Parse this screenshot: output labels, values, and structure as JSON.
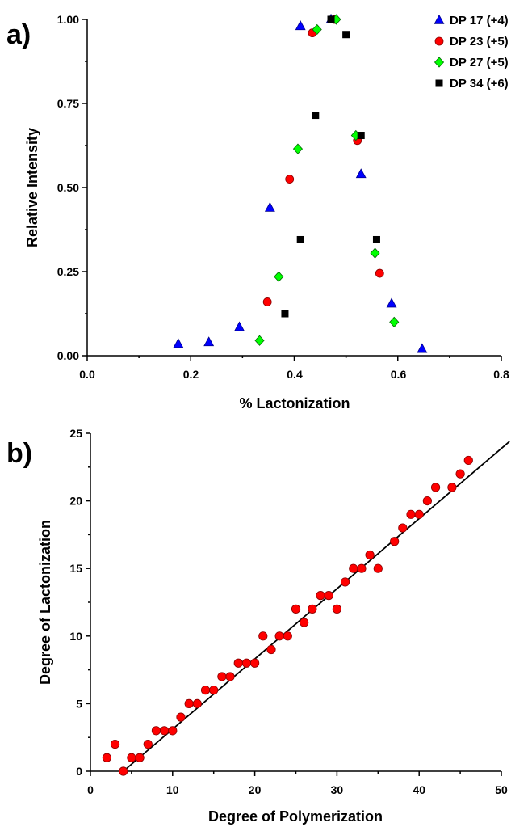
{
  "chart_data": [
    {
      "type": "scatter",
      "panel_label": "a)",
      "xlabel": "% Lactonization",
      "ylabel": "Relative Intensity",
      "xlim": [
        0.0,
        0.8
      ],
      "ylim": [
        0.0,
        1.0
      ],
      "xticks": [
        "0.0",
        "0.2",
        "0.4",
        "0.6",
        "0.8"
      ],
      "yticks": [
        "0.00",
        "0.25",
        "0.50",
        "0.75",
        "1.00"
      ],
      "grid": false,
      "legend_position": "top-right",
      "series": [
        {
          "name": "DP 17 (+4)",
          "marker": "triangle",
          "color": "#0000ff",
          "x": [
            0.176,
            0.235,
            0.294,
            0.353,
            0.412,
            0.471,
            0.529,
            0.588,
            0.647
          ],
          "y": [
            0.035,
            0.04,
            0.085,
            0.44,
            0.98,
            1.0,
            0.54,
            0.155,
            0.02
          ]
        },
        {
          "name": "DP 23 (+5)",
          "marker": "circle",
          "color": "#ff0000",
          "x": [
            0.348,
            0.391,
            0.435,
            0.478,
            0.522,
            0.565
          ],
          "y": [
            0.16,
            0.525,
            0.96,
            1.0,
            0.64,
            0.245
          ]
        },
        {
          "name": "DP 27 (+5)",
          "marker": "diamond",
          "color": "#00ff00",
          "x": [
            0.333,
            0.37,
            0.407,
            0.444,
            0.481,
            0.519,
            0.556,
            0.593
          ],
          "y": [
            0.045,
            0.235,
            0.615,
            0.97,
            1.0,
            0.655,
            0.305,
            0.1
          ]
        },
        {
          "name": "DP 34 (+6)",
          "marker": "square",
          "color": "#000000",
          "x": [
            0.382,
            0.412,
            0.441,
            0.471,
            0.5,
            0.529,
            0.559
          ],
          "y": [
            0.125,
            0.345,
            0.715,
            1.0,
            0.955,
            0.655,
            0.345
          ]
        }
      ]
    },
    {
      "type": "scatter",
      "panel_label": "b)",
      "xlabel": "Degree of Polymerization",
      "ylabel": "Degree of Lactonization",
      "xlim": [
        0,
        50
      ],
      "ylim": [
        0,
        25
      ],
      "xticks": [
        "0",
        "10",
        "20",
        "30",
        "40",
        "50"
      ],
      "yticks": [
        "0",
        "5",
        "10",
        "15",
        "20",
        "25"
      ],
      "grid": false,
      "marker_color": "#ff0000",
      "fit_line": {
        "x": [
          4,
          51
        ],
        "y": [
          0,
          24.4
        ]
      },
      "points": {
        "x": [
          2,
          3,
          4,
          5,
          6,
          7,
          8,
          9,
          10,
          11,
          12,
          13,
          14,
          15,
          16,
          17,
          18,
          19,
          20,
          21,
          22,
          23,
          24,
          25,
          26,
          27,
          28,
          29,
          30,
          31,
          32,
          33,
          34,
          35,
          37,
          38,
          39,
          40,
          41,
          42,
          44,
          45,
          46
        ],
        "y": [
          1,
          2,
          0,
          1,
          1,
          2,
          3,
          3,
          3,
          4,
          5,
          5,
          6,
          6,
          7,
          7,
          8,
          8,
          8,
          10,
          9,
          10,
          10,
          12,
          11,
          12,
          13,
          13,
          12,
          14,
          15,
          15,
          16,
          15,
          17,
          18,
          19,
          19,
          20,
          21,
          21,
          22,
          23
        ]
      }
    }
  ]
}
